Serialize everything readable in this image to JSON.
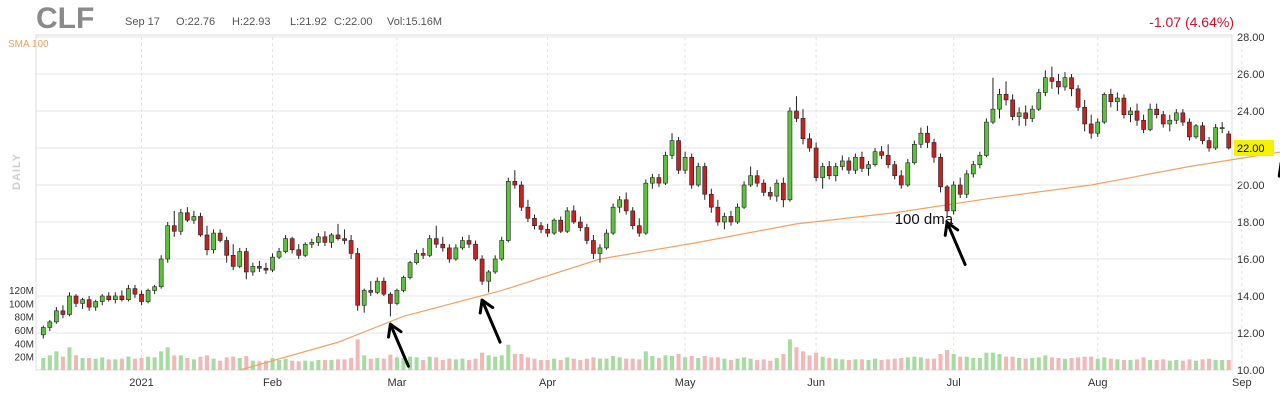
{
  "header": {
    "ticker": "CLF",
    "date": "Sep 17",
    "open": "O:22.76",
    "high": "H:22.93",
    "low": "L:21.92",
    "close": "C:22.00",
    "volume": "Vol:15.16M",
    "change": "-1.07 (4.64%)"
  },
  "indicator_label": "SMA 100",
  "period_label": "DAILY",
  "colors": {
    "up": "#5cc13a",
    "down": "#cc1f1f",
    "sma": "#f4a261",
    "vol_up": "#a6dca0",
    "vol_down": "#f2b7b7",
    "price_badge": "#f5f200",
    "annotation": "#000000"
  },
  "chart_data": {
    "type": "candlestick",
    "title": "CLF",
    "ylim": [
      10,
      28
    ],
    "y_ticks": [
      "28.00",
      "26.00",
      "24.00",
      "22.00",
      "20.00",
      "18.00",
      "16.00",
      "14.00",
      "12.00",
      "10.00"
    ],
    "current_price": "22.00",
    "volume_ticks": [
      "120M",
      "100M",
      "80M",
      "60M",
      "40M",
      "20M"
    ],
    "volume_ylim": [
      0,
      120
    ],
    "x_ticks": [
      "2021",
      "Feb",
      "Mar",
      "Apr",
      "May",
      "Jun",
      "Jul",
      "Aug",
      "Sep"
    ],
    "x_tick_index": [
      15,
      35,
      54,
      77,
      98,
      118,
      139,
      161,
      183
    ],
    "candles": [
      [
        11.9,
        12.4,
        11.7,
        12.3,
        18
      ],
      [
        12.3,
        12.7,
        12.1,
        12.6,
        22
      ],
      [
        12.6,
        13.4,
        12.5,
        13.2,
        28
      ],
      [
        13.2,
        13.5,
        12.8,
        13.0,
        20
      ],
      [
        13.0,
        14.2,
        12.9,
        14.0,
        34
      ],
      [
        14.0,
        14.1,
        13.4,
        13.6,
        22
      ],
      [
        13.6,
        13.9,
        13.3,
        13.8,
        18
      ],
      [
        13.8,
        14.0,
        13.2,
        13.4,
        18
      ],
      [
        13.4,
        13.8,
        13.2,
        13.7,
        17
      ],
      [
        13.7,
        14.1,
        13.5,
        14.0,
        19
      ],
      [
        14.0,
        14.2,
        13.7,
        13.8,
        16
      ],
      [
        13.8,
        14.2,
        13.6,
        14.0,
        16
      ],
      [
        14.0,
        14.3,
        13.7,
        13.8,
        17
      ],
      [
        13.8,
        14.6,
        13.7,
        14.4,
        20
      ],
      [
        14.4,
        14.6,
        13.9,
        14.1,
        17
      ],
      [
        14.1,
        14.3,
        13.5,
        13.7,
        18
      ],
      [
        13.7,
        14.4,
        13.6,
        14.3,
        20
      ],
      [
        14.3,
        14.6,
        14.1,
        14.5,
        19
      ],
      [
        14.5,
        16.2,
        14.4,
        16.0,
        28
      ],
      [
        16.0,
        18.0,
        15.8,
        17.8,
        34
      ],
      [
        17.8,
        18.6,
        17.2,
        17.5,
        22
      ],
      [
        17.5,
        18.7,
        17.3,
        18.5,
        22
      ],
      [
        18.5,
        18.8,
        18.0,
        18.1,
        18
      ],
      [
        18.1,
        18.6,
        17.9,
        18.3,
        16
      ],
      [
        18.3,
        18.5,
        17.2,
        17.3,
        20
      ],
      [
        17.3,
        17.8,
        16.2,
        16.5,
        22
      ],
      [
        16.5,
        17.6,
        16.3,
        17.4,
        17
      ],
      [
        17.4,
        17.6,
        16.9,
        17.0,
        14
      ],
      [
        17.0,
        17.2,
        15.8,
        16.2,
        19
      ],
      [
        16.2,
        16.8,
        15.4,
        15.6,
        20
      ],
      [
        15.6,
        16.6,
        15.5,
        16.4,
        18
      ],
      [
        16.4,
        16.6,
        14.9,
        15.3,
        21
      ],
      [
        15.3,
        15.8,
        15.1,
        15.6,
        14
      ],
      [
        15.6,
        15.9,
        15.3,
        15.5,
        13
      ],
      [
        15.5,
        15.8,
        15.2,
        15.4,
        14
      ],
      [
        15.4,
        16.3,
        15.3,
        16.1,
        18
      ],
      [
        16.1,
        16.6,
        16.0,
        16.4,
        15
      ],
      [
        16.4,
        17.3,
        16.3,
        17.1,
        17
      ],
      [
        17.1,
        17.2,
        16.3,
        16.5,
        14
      ],
      [
        16.5,
        16.8,
        16.0,
        16.2,
        13
      ],
      [
        16.2,
        16.9,
        16.1,
        16.8,
        14
      ],
      [
        16.8,
        17.1,
        16.6,
        16.9,
        13
      ],
      [
        16.9,
        17.4,
        16.7,
        17.2,
        15
      ],
      [
        17.2,
        17.5,
        16.7,
        16.9,
        15
      ],
      [
        16.9,
        17.4,
        16.6,
        17.3,
        15
      ],
      [
        17.3,
        17.9,
        17.0,
        17.1,
        16
      ],
      [
        17.1,
        17.6,
        16.8,
        17.0,
        16
      ],
      [
        17.0,
        17.3,
        16.0,
        16.3,
        18
      ],
      [
        16.3,
        16.6,
        13.2,
        13.5,
        46
      ],
      [
        13.5,
        14.4,
        13.1,
        14.3,
        22
      ],
      [
        14.3,
        14.8,
        14.0,
        14.2,
        17
      ],
      [
        14.2,
        15.0,
        14.1,
        14.8,
        18
      ],
      [
        14.8,
        15.0,
        14.0,
        14.1,
        17
      ],
      [
        14.1,
        14.2,
        12.9,
        13.6,
        23
      ],
      [
        13.6,
        14.4,
        13.5,
        14.3,
        19
      ],
      [
        14.3,
        15.1,
        14.2,
        15.0,
        18
      ],
      [
        15.0,
        15.9,
        14.9,
        15.8,
        20
      ],
      [
        15.8,
        16.5,
        15.7,
        16.3,
        19
      ],
      [
        16.3,
        16.6,
        16.0,
        16.2,
        15
      ],
      [
        16.2,
        17.3,
        16.1,
        17.1,
        20
      ],
      [
        17.1,
        17.8,
        16.6,
        16.8,
        19
      ],
      [
        16.8,
        17.2,
        16.4,
        16.6,
        15
      ],
      [
        16.6,
        16.8,
        15.8,
        16.0,
        17
      ],
      [
        16.0,
        16.8,
        15.9,
        16.6,
        16
      ],
      [
        16.6,
        17.2,
        16.5,
        17.0,
        17
      ],
      [
        17.0,
        17.3,
        16.6,
        16.8,
        15
      ],
      [
        16.8,
        17.0,
        15.9,
        16.0,
        17
      ],
      [
        16.0,
        16.2,
        14.6,
        14.8,
        26
      ],
      [
        14.8,
        15.4,
        14.2,
        15.3,
        22
      ],
      [
        15.3,
        16.2,
        15.2,
        16.0,
        20
      ],
      [
        16.0,
        17.2,
        15.9,
        17.0,
        22
      ],
      [
        17.0,
        20.4,
        16.9,
        20.2,
        38
      ],
      [
        20.2,
        20.8,
        19.8,
        20.0,
        24
      ],
      [
        20.0,
        20.2,
        18.6,
        18.8,
        24
      ],
      [
        18.8,
        19.2,
        18.0,
        18.2,
        19
      ],
      [
        18.2,
        18.4,
        17.6,
        17.8,
        17
      ],
      [
        17.8,
        18.0,
        17.4,
        17.6,
        15
      ],
      [
        17.6,
        17.9,
        17.2,
        17.4,
        15
      ],
      [
        17.4,
        18.2,
        17.3,
        18.1,
        17
      ],
      [
        18.1,
        18.3,
        17.4,
        17.5,
        15
      ],
      [
        17.5,
        18.8,
        17.4,
        18.6,
        19
      ],
      [
        18.6,
        18.9,
        17.9,
        18.0,
        17
      ],
      [
        18.0,
        18.3,
        17.5,
        17.7,
        15
      ],
      [
        17.7,
        17.9,
        16.8,
        17.0,
        17
      ],
      [
        17.0,
        17.3,
        16.0,
        16.3,
        19
      ],
      [
        16.3,
        16.8,
        15.8,
        16.6,
        17
      ],
      [
        16.6,
        17.6,
        16.5,
        17.4,
        17
      ],
      [
        17.4,
        19.0,
        17.3,
        18.8,
        21
      ],
      [
        18.8,
        19.4,
        18.5,
        19.2,
        19
      ],
      [
        19.2,
        19.6,
        18.4,
        18.6,
        17
      ],
      [
        18.6,
        18.8,
        17.6,
        17.8,
        17
      ],
      [
        17.8,
        18.2,
        17.2,
        17.4,
        16
      ],
      [
        17.4,
        20.3,
        17.3,
        20.1,
        28
      ],
      [
        20.1,
        20.6,
        19.8,
        20.4,
        21
      ],
      [
        20.4,
        20.6,
        19.9,
        20.1,
        18
      ],
      [
        20.1,
        21.8,
        20.0,
        21.6,
        22
      ],
      [
        21.6,
        22.8,
        21.4,
        22.4,
        21
      ],
      [
        22.4,
        22.6,
        20.6,
        20.8,
        24
      ],
      [
        20.8,
        21.8,
        20.6,
        21.5,
        19
      ],
      [
        21.5,
        21.7,
        19.8,
        20.0,
        21
      ],
      [
        20.0,
        21.2,
        19.9,
        21.0,
        18
      ],
      [
        21.0,
        21.2,
        19.2,
        19.5,
        21
      ],
      [
        19.5,
        19.8,
        18.5,
        18.8,
        19
      ],
      [
        18.8,
        19.2,
        17.8,
        18.0,
        19
      ],
      [
        18.0,
        18.5,
        17.6,
        18.3,
        17
      ],
      [
        18.3,
        18.6,
        17.8,
        18.0,
        15
      ],
      [
        18.0,
        19.0,
        17.9,
        18.8,
        17
      ],
      [
        18.8,
        20.2,
        18.7,
        20.0,
        19
      ],
      [
        20.0,
        21.0,
        19.9,
        20.5,
        17
      ],
      [
        20.5,
        20.8,
        19.9,
        20.1,
        15
      ],
      [
        20.1,
        20.3,
        19.4,
        19.6,
        16
      ],
      [
        19.6,
        19.9,
        19.2,
        19.4,
        14
      ],
      [
        19.4,
        20.3,
        19.1,
        20.1,
        18
      ],
      [
        20.1,
        20.4,
        18.8,
        19.2,
        24
      ],
      [
        19.2,
        24.2,
        19.1,
        24.0,
        46
      ],
      [
        24.0,
        24.8,
        23.4,
        23.6,
        34
      ],
      [
        23.6,
        24.1,
        22.2,
        22.5,
        28
      ],
      [
        22.5,
        22.8,
        21.8,
        22.0,
        22
      ],
      [
        22.0,
        22.3,
        20.2,
        20.4,
        26
      ],
      [
        20.4,
        21.2,
        19.8,
        21.0,
        20
      ],
      [
        21.0,
        21.3,
        20.3,
        20.5,
        18
      ],
      [
        20.5,
        21.2,
        20.2,
        21.0,
        17
      ],
      [
        21.0,
        21.6,
        20.8,
        21.3,
        16
      ],
      [
        21.3,
        21.5,
        20.6,
        20.8,
        15
      ],
      [
        20.8,
        21.7,
        20.6,
        21.5,
        16
      ],
      [
        21.5,
        21.8,
        20.7,
        20.9,
        16
      ],
      [
        20.9,
        21.3,
        20.5,
        21.1,
        15
      ],
      [
        21.1,
        22.0,
        21.0,
        21.8,
        17
      ],
      [
        21.8,
        22.1,
        21.4,
        21.6,
        15
      ],
      [
        21.6,
        22.2,
        20.9,
        21.1,
        16
      ],
      [
        21.1,
        21.3,
        20.3,
        20.5,
        17
      ],
      [
        20.5,
        20.8,
        19.8,
        20.0,
        18
      ],
      [
        20.0,
        21.4,
        19.9,
        21.2,
        19
      ],
      [
        21.2,
        22.4,
        21.1,
        22.2,
        20
      ],
      [
        22.2,
        23.1,
        22.0,
        22.8,
        19
      ],
      [
        22.8,
        23.2,
        22.0,
        22.3,
        17
      ],
      [
        22.3,
        22.5,
        21.2,
        21.5,
        17
      ],
      [
        21.5,
        21.7,
        19.6,
        19.9,
        24
      ],
      [
        19.9,
        20.0,
        18.3,
        18.6,
        30
      ],
      [
        18.6,
        20.2,
        18.4,
        20.0,
        24
      ],
      [
        20.0,
        20.4,
        19.3,
        19.5,
        20
      ],
      [
        19.5,
        20.8,
        19.3,
        20.6,
        20
      ],
      [
        20.6,
        21.3,
        20.4,
        21.1,
        18
      ],
      [
        21.1,
        21.8,
        20.9,
        21.6,
        18
      ],
      [
        21.6,
        23.6,
        21.5,
        23.4,
        26
      ],
      [
        23.4,
        25.8,
        23.3,
        24.1,
        26
      ],
      [
        24.1,
        25.2,
        23.6,
        24.9,
        24
      ],
      [
        24.9,
        25.6,
        24.3,
        24.6,
        20
      ],
      [
        24.6,
        24.9,
        23.5,
        23.7,
        20
      ],
      [
        23.7,
        24.2,
        23.2,
        23.9,
        18
      ],
      [
        23.9,
        24.3,
        23.2,
        23.6,
        17
      ],
      [
        23.6,
        24.3,
        23.4,
        24.1,
        18
      ],
      [
        24.1,
        25.2,
        24.0,
        25.0,
        19
      ],
      [
        25.0,
        26.2,
        24.8,
        25.8,
        22
      ],
      [
        25.8,
        26.4,
        25.2,
        25.6,
        19
      ],
      [
        25.6,
        26.0,
        24.9,
        25.3,
        18
      ],
      [
        25.3,
        26.1,
        25.1,
        25.8,
        17
      ],
      [
        25.8,
        26.0,
        24.8,
        25.2,
        18
      ],
      [
        25.2,
        25.4,
        24.0,
        24.2,
        19
      ],
      [
        24.2,
        24.6,
        22.9,
        23.3,
        20
      ],
      [
        23.3,
        23.8,
        22.5,
        22.8,
        20
      ],
      [
        22.8,
        23.6,
        22.6,
        23.4,
        17
      ],
      [
        23.4,
        25.0,
        23.3,
        24.9,
        19
      ],
      [
        24.9,
        25.2,
        24.2,
        24.5,
        17
      ],
      [
        24.5,
        25.0,
        24.0,
        24.7,
        16
      ],
      [
        24.7,
        24.9,
        23.6,
        23.8,
        15
      ],
      [
        23.8,
        24.2,
        23.4,
        24.0,
        15
      ],
      [
        24.0,
        24.4,
        23.2,
        23.5,
        16
      ],
      [
        23.5,
        23.8,
        22.8,
        23.0,
        19
      ],
      [
        23.0,
        24.4,
        22.9,
        24.1,
        15
      ],
      [
        24.1,
        24.4,
        23.6,
        23.8,
        15
      ],
      [
        23.8,
        24.0,
        23.1,
        23.3,
        16
      ],
      [
        23.3,
        23.8,
        22.9,
        23.5,
        14
      ],
      [
        23.5,
        24.1,
        23.3,
        23.9,
        15
      ],
      [
        23.9,
        24.1,
        23.2,
        23.4,
        14
      ],
      [
        23.4,
        23.6,
        22.4,
        22.6,
        16
      ],
      [
        22.6,
        23.3,
        22.5,
        23.2,
        14
      ],
      [
        23.2,
        23.4,
        22.2,
        22.4,
        16
      ],
      [
        22.4,
        22.6,
        21.8,
        22.0,
        17
      ],
      [
        22.0,
        23.3,
        21.9,
        23.1,
        15
      ],
      [
        23.1,
        23.4,
        22.8,
        23.1,
        15
      ],
      [
        22.76,
        22.93,
        21.92,
        22.0,
        15
      ]
    ],
    "sma_100": [
      [
        0,
        null
      ],
      [
        11,
        null
      ],
      [
        30,
        10.0
      ],
      [
        45,
        11.5
      ],
      [
        55,
        12.9
      ],
      [
        70,
        14.3
      ],
      [
        85,
        16.0
      ],
      [
        100,
        16.9
      ],
      [
        115,
        17.9
      ],
      [
        130,
        18.5
      ],
      [
        145,
        19.3
      ],
      [
        160,
        20.0
      ],
      [
        175,
        21.0
      ],
      [
        191,
        21.9
      ]
    ],
    "annotations": {
      "label": "100 dma",
      "arrows": [
        {
          "index": 53,
          "price": 12.8
        },
        {
          "index": 67,
          "price": 14.1
        },
        {
          "index": 138,
          "price": 18.3
        },
        {
          "index": 189,
          "price": 21.5
        }
      ]
    }
  }
}
